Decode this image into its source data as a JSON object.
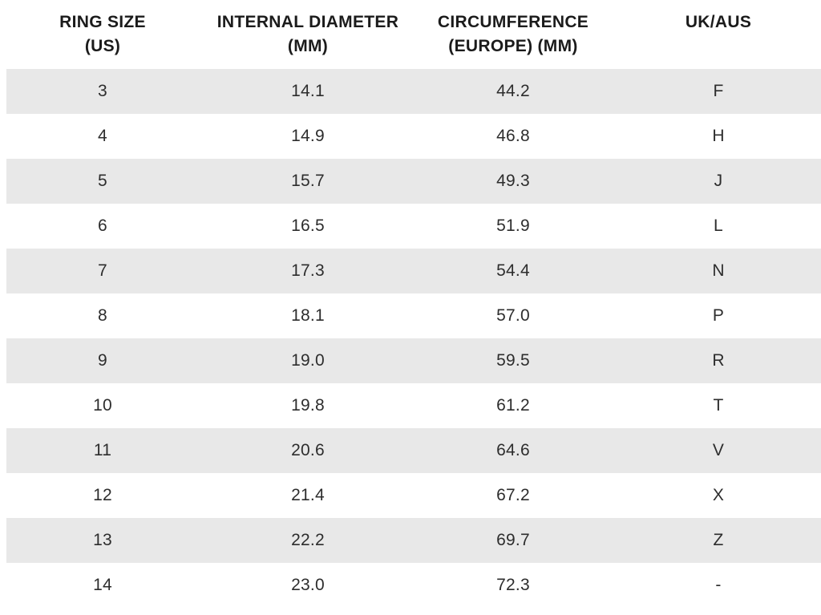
{
  "colors": {
    "background": "#ffffff",
    "stripe": "#e8e8e8",
    "header_text": "#1b1b1b",
    "body_text": "#2d2d2d"
  },
  "table": {
    "columns": [
      {
        "line1": "RING SIZE",
        "line2": "(US)"
      },
      {
        "line1": "INTERNAL DIAMETER",
        "line2": "(MM)"
      },
      {
        "line1": "CIRCUMFERENCE",
        "line2": "(EUROPE) (MM)"
      },
      {
        "line1": "UK/AUS",
        "line2": ""
      }
    ],
    "rows": [
      [
        "3",
        "14.1",
        "44.2",
        "F"
      ],
      [
        "4",
        "14.9",
        "46.8",
        "H"
      ],
      [
        "5",
        "15.7",
        "49.3",
        "J"
      ],
      [
        "6",
        "16.5",
        "51.9",
        "L"
      ],
      [
        "7",
        "17.3",
        "54.4",
        "N"
      ],
      [
        "8",
        "18.1",
        "57.0",
        "P"
      ],
      [
        "9",
        "19.0",
        "59.5",
        "R"
      ],
      [
        "10",
        "19.8",
        "61.2",
        "T"
      ],
      [
        "11",
        "20.6",
        "64.6",
        "V"
      ],
      [
        "12",
        "21.4",
        "67.2",
        "X"
      ],
      [
        "13",
        "22.2",
        "69.7",
        "Z"
      ],
      [
        "14",
        "23.0",
        "72.3",
        "-"
      ]
    ]
  },
  "chart_data": {
    "type": "table",
    "columns": [
      "RING SIZE (US)",
      "INTERNAL DIAMETER (MM)",
      "CIRCUMFERENCE (EUROPE) (MM)",
      "UK/AUS"
    ],
    "rows": [
      [
        "3",
        "14.1",
        "44.2",
        "F"
      ],
      [
        "4",
        "14.9",
        "46.8",
        "H"
      ],
      [
        "5",
        "15.7",
        "49.3",
        "J"
      ],
      [
        "6",
        "16.5",
        "51.9",
        "L"
      ],
      [
        "7",
        "17.3",
        "54.4",
        "N"
      ],
      [
        "8",
        "18.1",
        "57.0",
        "P"
      ],
      [
        "9",
        "19.0",
        "59.5",
        "R"
      ],
      [
        "10",
        "19.8",
        "61.2",
        "T"
      ],
      [
        "11",
        "20.6",
        "64.6",
        "V"
      ],
      [
        "12",
        "21.4",
        "67.2",
        "X"
      ],
      [
        "13",
        "22.2",
        "69.7",
        "Z"
      ],
      [
        "14",
        "23.0",
        "72.3",
        "-"
      ]
    ],
    "layout": {
      "striped_rows": "odd rows shaded light gray starting with first data row",
      "column_alignment": "center",
      "grid": false
    }
  }
}
